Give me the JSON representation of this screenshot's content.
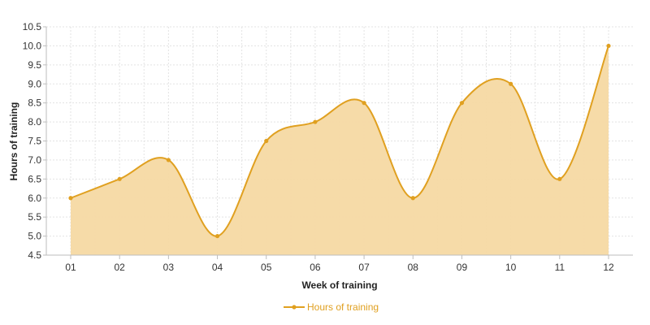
{
  "chart_data": {
    "type": "area",
    "title": "",
    "xlabel": "Week of training",
    "ylabel": "Hours of training",
    "categories": [
      "01",
      "02",
      "03",
      "04",
      "05",
      "06",
      "07",
      "08",
      "09",
      "10",
      "11",
      "12"
    ],
    "series": [
      {
        "name": "Hours of training",
        "values": [
          6.0,
          6.5,
          7.0,
          5.0,
          7.5,
          8.0,
          8.5,
          6.0,
          8.5,
          9.0,
          6.5,
          10.0
        ]
      }
    ],
    "ylim": [
      4.5,
      10.5
    ],
    "yticks": [
      "4.5",
      "5.0",
      "5.5",
      "6.0",
      "6.5",
      "7.0",
      "7.5",
      "8.0",
      "8.5",
      "9.0",
      "9.5",
      "10.0",
      "10.5"
    ],
    "grid": true,
    "smooth": true,
    "legend_position": "bottom-center",
    "colors": {
      "line": "#e0a020",
      "fill": "#f5d9a3",
      "marker": "#e0a020"
    }
  }
}
